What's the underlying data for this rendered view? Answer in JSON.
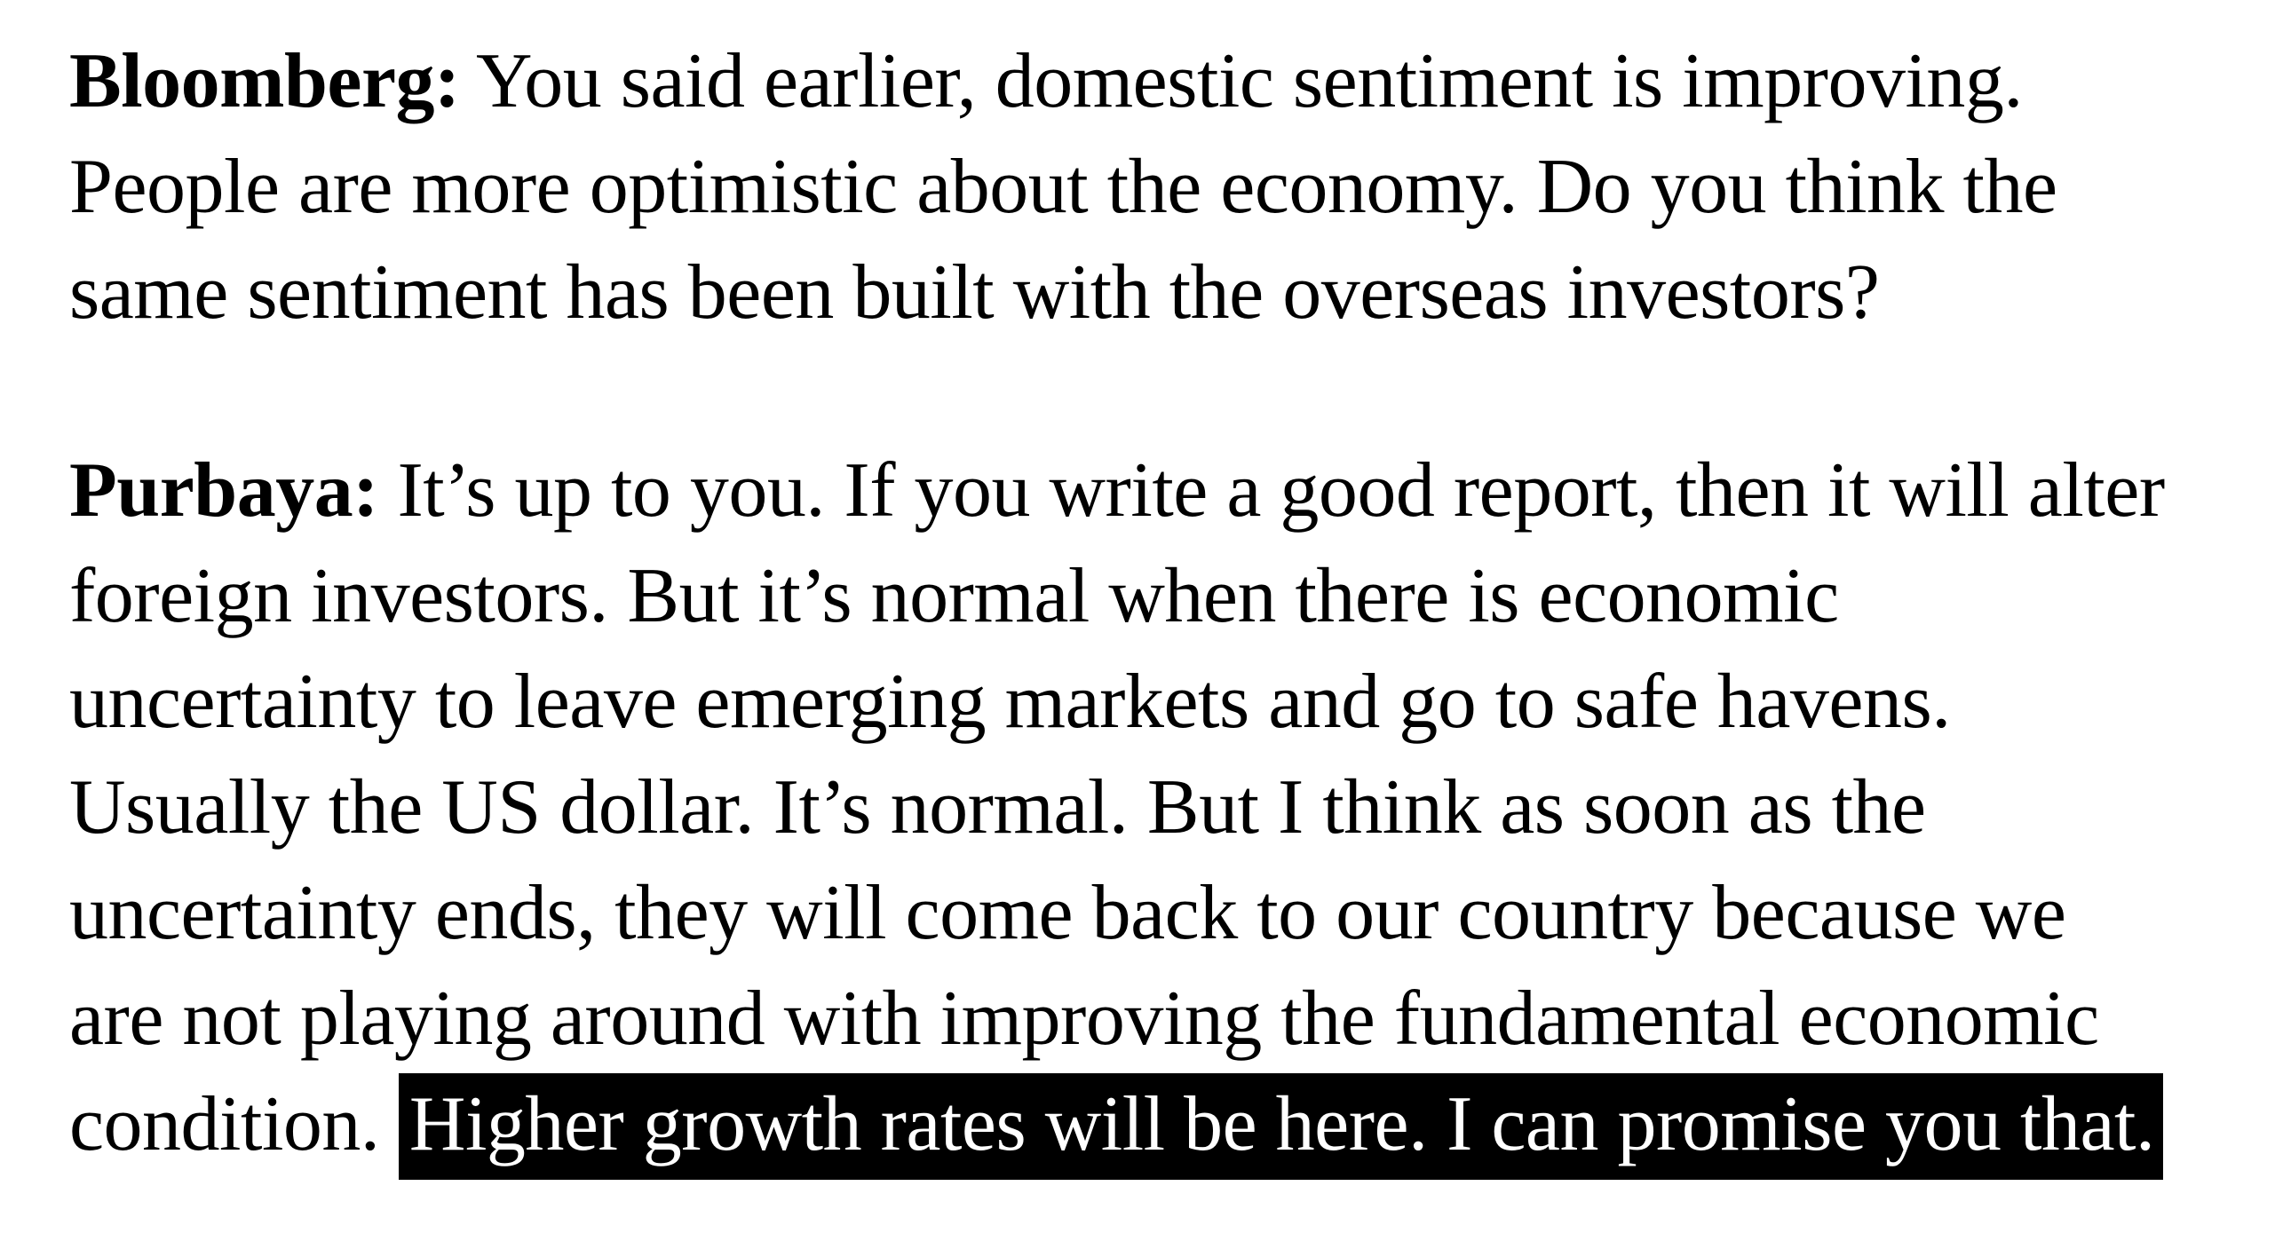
{
  "page": {
    "background_color": "#ffffff",
    "text_color": "#000000",
    "highlight_bg_color": "#000000",
    "highlight_text_color": "#ffffff"
  },
  "article": {
    "paragraphs": [
      {
        "speaker": "Bloomberg:",
        "lines": [
          {
            "bold": "Bloomberg:",
            "text": " You said earlier, domestic sentiment is improving."
          },
          {
            "text": "People are more optimistic about the economy. Do you think the"
          },
          {
            "text": "same sentiment has been built with the overseas investors?"
          }
        ]
      },
      {
        "speaker": "Purbaya:",
        "lines": [
          {
            "bold": "Purbaya:",
            "text": " It’s up to you. If you write a good report, then it will alter"
          },
          {
            "text": "foreign investors. But it’s normal when there is economic"
          },
          {
            "text": "uncertainty to leave emerging markets and go to safe havens."
          },
          {
            "text": "Usually the US dollar. It’s normal. But I think as soon as the"
          },
          {
            "text": "uncertainty ends, they will come back to our country because we"
          },
          {
            "text": "are not playing around with improving the fundamental economic"
          },
          {
            "text": "condition. ",
            "highlight": "Higher growth rates will be here. I can promise you that."
          }
        ]
      }
    ]
  }
}
